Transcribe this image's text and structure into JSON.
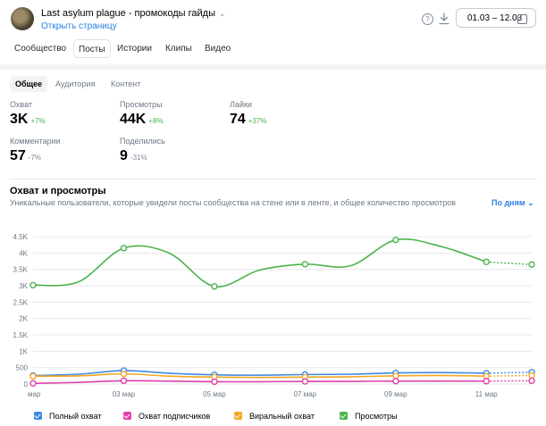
{
  "header": {
    "group_title": "Last asylum plague - промокоды гайды",
    "open_link": "Открыть страницу",
    "help_icon": "question-circle-icon",
    "download_icon": "download-icon",
    "date_range": "01.03 – 12.03"
  },
  "tabs": [
    "Сообщество",
    "Посты",
    "Истории",
    "Клипы",
    "Видео"
  ],
  "active_tab": "Посты",
  "subtabs": [
    "Общее",
    "Аудитория",
    "Контент"
  ],
  "active_subtab": "Общее",
  "metrics": [
    {
      "label": "Охват",
      "value": "3K",
      "delta": "+7%",
      "trend": "up"
    },
    {
      "label": "Просмотры",
      "value": "44K",
      "delta": "+8%",
      "trend": "up"
    },
    {
      "label": "Лайки",
      "value": "74",
      "delta": "+37%",
      "trend": "up"
    },
    {
      "label": "Комментарии",
      "value": "57",
      "delta": "-7%",
      "trend": "down"
    },
    {
      "label": "Поделились",
      "value": "9",
      "delta": "-31%",
      "trend": "down"
    }
  ],
  "chart_section": {
    "title": "Охват и просмотры",
    "subtitle": "Уникальные пользователи, которые увидели посты сообщества на стене или в ленте, и общее количество просмотров",
    "period_selector": "По дням"
  },
  "colors": {
    "views": "#4bb34b",
    "total_reach": "#3f8ae0",
    "subscriber_reach": "#e03fab",
    "viral_reach": "#f4a623",
    "link": "#2d81e0"
  },
  "chart_data": {
    "type": "line",
    "x": [
      "01 мар",
      "02 мар",
      "03 мар",
      "04 мар",
      "05 мар",
      "06 мар",
      "07 мар",
      "08 мар",
      "09 мар",
      "10 мар",
      "11 мар",
      "12 мар"
    ],
    "x_tick_labels": [
      "мар",
      "03 мар",
      "05 мар",
      "07 мар",
      "09 мар",
      "11 мар"
    ],
    "y_ticks": [
      "0",
      "500",
      "1K",
      "1.5K",
      "2K",
      "2.5K",
      "3K",
      "3.5K",
      "4K",
      "4.5K"
    ],
    "ylim": [
      0,
      4500
    ],
    "grid": true,
    "last_segment_dashed": true,
    "series": [
      {
        "name": "Полный охват",
        "color": "#3f8ae0",
        "values": [
          260,
          300,
          410,
          330,
          280,
          270,
          290,
          300,
          340,
          350,
          330,
          360
        ]
      },
      {
        "name": "Охват подписчиков",
        "color": "#e03fab",
        "values": [
          20,
          50,
          100,
          90,
          70,
          70,
          80,
          80,
          90,
          90,
          90,
          100
        ]
      },
      {
        "name": "Виральный охват",
        "color": "#f4a623",
        "values": [
          240,
          250,
          310,
          240,
          210,
          200,
          210,
          220,
          250,
          260,
          240,
          260
        ]
      },
      {
        "name": "Просмотры",
        "color": "#4bb34b",
        "values": [
          3020,
          3120,
          4150,
          4000,
          2980,
          3480,
          3660,
          3610,
          4400,
          4200,
          3730,
          3650
        ]
      }
    ]
  }
}
